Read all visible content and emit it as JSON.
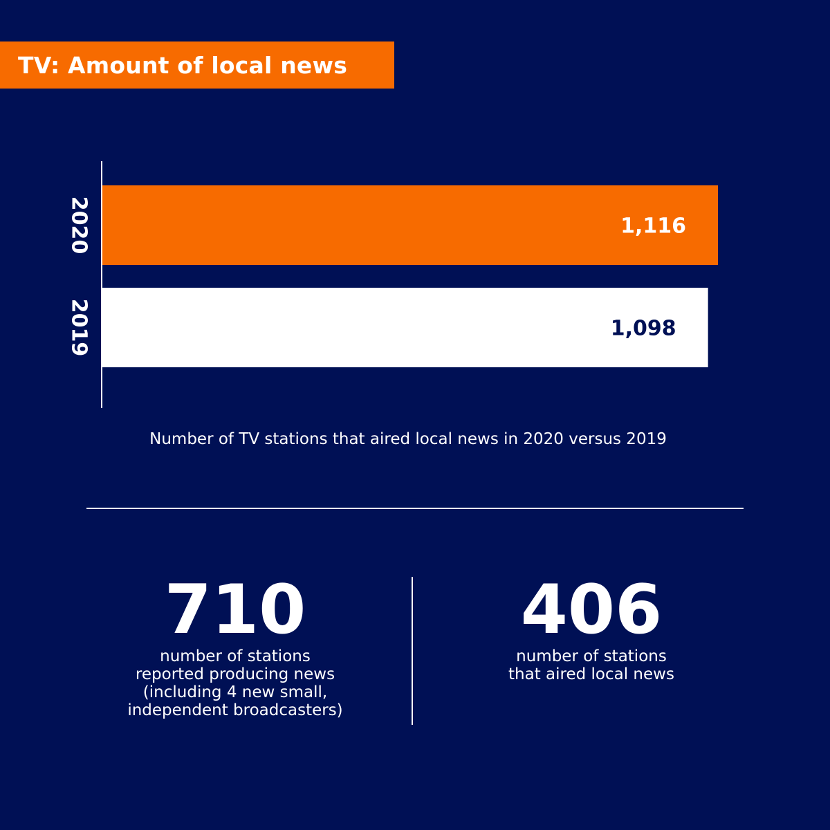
{
  "title": "TV: Amount of local news",
  "colors": {
    "background": "#001055",
    "accent": "#f76b00",
    "white": "#ffffff"
  },
  "chart_data": {
    "type": "bar",
    "orientation": "horizontal",
    "categories": [
      "2020",
      "2019"
    ],
    "values": [
      1116,
      1098
    ],
    "value_labels": [
      "1,116",
      "1,098"
    ],
    "bar_colors": [
      "#f76b00",
      "#ffffff"
    ],
    "label_colors": [
      "#ffffff",
      "#001055"
    ],
    "caption": "Number of TV stations that aired local news in 2020 versus 2019",
    "grid": false,
    "legend": "none"
  },
  "stats": [
    {
      "number": "710",
      "description": "number of stations\nreported producing news\n(including 4 new small,\nindependent broadcasters)"
    },
    {
      "number": "406",
      "description": "number of stations\nthat aired local news"
    }
  ]
}
